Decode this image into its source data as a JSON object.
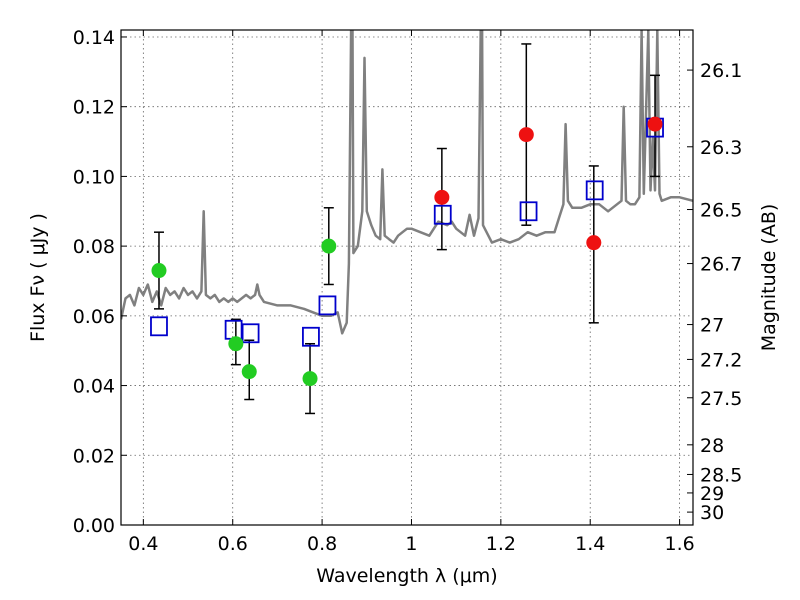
{
  "chart_data": {
    "type": "scatter",
    "xlabel": "Wavelength  λ (μm)",
    "ylabel": "Flux  Fν  ( μJy )",
    "y2label": "Magnitude (AB)",
    "xlim": [
      0.35,
      1.63
    ],
    "ylim": [
      0.0,
      0.142
    ],
    "grid": true,
    "x_ticks": [
      {
        "value": 0.4,
        "label": "0.4"
      },
      {
        "value": 0.6,
        "label": "0.6"
      },
      {
        "value": 0.8,
        "label": "0.8"
      },
      {
        "value": 1.0,
        "label": "1"
      },
      {
        "value": 1.2,
        "label": "1.2"
      },
      {
        "value": 1.4,
        "label": "1.4"
      },
      {
        "value": 1.6,
        "label": "1.6"
      }
    ],
    "y_ticks": [
      {
        "value": 0.0,
        "label": "0.00"
      },
      {
        "value": 0.02,
        "label": "0.02"
      },
      {
        "value": 0.04,
        "label": "0.04"
      },
      {
        "value": 0.06,
        "label": "0.06"
      },
      {
        "value": 0.08,
        "label": "0.08"
      },
      {
        "value": 0.1,
        "label": "0.10"
      },
      {
        "value": 0.12,
        "label": "0.12"
      },
      {
        "value": 0.14,
        "label": "0.14"
      }
    ],
    "y2_ticks": [
      {
        "label": "26.1",
        "flux": 0.1305
      },
      {
        "label": "26.3",
        "flux": 0.1085
      },
      {
        "label": "26.5",
        "flux": 0.0905
      },
      {
        "label": "26.7",
        "flux": 0.075
      },
      {
        "label": "27",
        "flux": 0.0575
      },
      {
        "label": "27.2",
        "flux": 0.0475
      },
      {
        "label": "27.5",
        "flux": 0.0365
      },
      {
        "label": "28",
        "flux": 0.023
      },
      {
        "label": "28.5",
        "flux": 0.0145
      },
      {
        "label": "29",
        "flux": 0.0092
      },
      {
        "label": "30",
        "flux": 0.0037
      }
    ],
    "series": [
      {
        "kind": "model-spectrum",
        "color": "#808080",
        "points": [
          [
            0.35,
            0.059
          ],
          [
            0.36,
            0.065
          ],
          [
            0.37,
            0.066
          ],
          [
            0.38,
            0.063
          ],
          [
            0.39,
            0.068
          ],
          [
            0.4,
            0.066
          ],
          [
            0.41,
            0.069
          ],
          [
            0.42,
            0.064
          ],
          [
            0.43,
            0.067
          ],
          [
            0.44,
            0.063
          ],
          [
            0.45,
            0.068
          ],
          [
            0.46,
            0.066
          ],
          [
            0.47,
            0.067
          ],
          [
            0.48,
            0.065
          ],
          [
            0.49,
            0.068
          ],
          [
            0.5,
            0.066
          ],
          [
            0.51,
            0.067
          ],
          [
            0.52,
            0.065
          ],
          [
            0.53,
            0.067
          ],
          [
            0.535,
            0.09
          ],
          [
            0.54,
            0.066
          ],
          [
            0.55,
            0.065
          ],
          [
            0.56,
            0.066
          ],
          [
            0.57,
            0.064
          ],
          [
            0.58,
            0.065
          ],
          [
            0.59,
            0.064
          ],
          [
            0.6,
            0.065
          ],
          [
            0.61,
            0.064
          ],
          [
            0.62,
            0.065
          ],
          [
            0.63,
            0.066
          ],
          [
            0.64,
            0.065
          ],
          [
            0.65,
            0.066
          ],
          [
            0.655,
            0.069
          ],
          [
            0.66,
            0.066
          ],
          [
            0.67,
            0.064
          ],
          [
            0.7,
            0.063
          ],
          [
            0.73,
            0.063
          ],
          [
            0.76,
            0.062
          ],
          [
            0.78,
            0.061
          ],
          [
            0.8,
            0.06
          ],
          [
            0.82,
            0.06
          ],
          [
            0.835,
            0.061
          ],
          [
            0.845,
            0.055
          ],
          [
            0.855,
            0.058
          ],
          [
            0.86,
            0.075
          ],
          [
            0.865,
            0.142
          ],
          [
            0.868,
            0.142
          ],
          [
            0.87,
            0.078
          ],
          [
            0.88,
            0.08
          ],
          [
            0.89,
            0.09
          ],
          [
            0.895,
            0.134
          ],
          [
            0.9,
            0.09
          ],
          [
            0.91,
            0.086
          ],
          [
            0.92,
            0.083
          ],
          [
            0.93,
            0.082
          ],
          [
            0.935,
            0.102
          ],
          [
            0.94,
            0.083
          ],
          [
            0.95,
            0.082
          ],
          [
            0.96,
            0.081
          ],
          [
            0.97,
            0.083
          ],
          [
            0.98,
            0.084
          ],
          [
            0.99,
            0.085
          ],
          [
            1.0,
            0.085
          ],
          [
            1.02,
            0.084
          ],
          [
            1.04,
            0.083
          ],
          [
            1.06,
            0.087
          ],
          [
            1.08,
            0.086
          ],
          [
            1.09,
            0.087
          ],
          [
            1.1,
            0.085
          ],
          [
            1.12,
            0.083
          ],
          [
            1.13,
            0.089
          ],
          [
            1.14,
            0.083
          ],
          [
            1.15,
            0.088
          ],
          [
            1.155,
            0.142
          ],
          [
            1.158,
            0.142
          ],
          [
            1.16,
            0.086
          ],
          [
            1.18,
            0.081
          ],
          [
            1.2,
            0.082
          ],
          [
            1.22,
            0.081
          ],
          [
            1.24,
            0.082
          ],
          [
            1.26,
            0.084
          ],
          [
            1.28,
            0.083
          ],
          [
            1.3,
            0.084
          ],
          [
            1.32,
            0.084
          ],
          [
            1.33,
            0.088
          ],
          [
            1.34,
            0.092
          ],
          [
            1.345,
            0.115
          ],
          [
            1.35,
            0.093
          ],
          [
            1.36,
            0.091
          ],
          [
            1.38,
            0.091
          ],
          [
            1.4,
            0.092
          ],
          [
            1.42,
            0.092
          ],
          [
            1.44,
            0.09
          ],
          [
            1.46,
            0.092
          ],
          [
            1.47,
            0.093
          ],
          [
            1.475,
            0.12
          ],
          [
            1.48,
            0.093
          ],
          [
            1.49,
            0.092
          ],
          [
            1.5,
            0.092
          ],
          [
            1.51,
            0.094
          ],
          [
            1.515,
            0.142
          ],
          [
            1.52,
            0.095
          ],
          [
            1.53,
            0.142
          ],
          [
            1.535,
            0.096
          ],
          [
            1.54,
            0.111
          ],
          [
            1.545,
            0.096
          ],
          [
            1.55,
            0.142
          ],
          [
            1.555,
            0.095
          ],
          [
            1.56,
            0.093
          ],
          [
            1.58,
            0.094
          ],
          [
            1.6,
            0.094
          ],
          [
            1.63,
            0.093
          ]
        ]
      },
      {
        "kind": "model-photometry",
        "marker": "open-square",
        "color": "#0000cc",
        "points": [
          [
            0.435,
            0.057
          ],
          [
            0.602,
            0.056
          ],
          [
            0.64,
            0.055
          ],
          [
            0.775,
            0.054
          ],
          [
            0.812,
            0.063
          ],
          [
            1.07,
            0.089
          ],
          [
            1.262,
            0.09
          ],
          [
            1.41,
            0.096
          ],
          [
            1.545,
            0.114
          ]
        ]
      },
      {
        "kind": "observed-optical",
        "marker": "filled-circle",
        "color": "#22cc22",
        "points": [
          {
            "x": 0.435,
            "y": 0.073,
            "lo": 0.062,
            "hi": 0.084
          },
          {
            "x": 0.607,
            "y": 0.052,
            "lo": 0.046,
            "hi": 0.059
          },
          {
            "x": 0.637,
            "y": 0.044,
            "lo": 0.036,
            "hi": 0.053
          },
          {
            "x": 0.773,
            "y": 0.042,
            "lo": 0.032,
            "hi": 0.052
          },
          {
            "x": 0.815,
            "y": 0.08,
            "lo": 0.069,
            "hi": 0.091
          }
        ]
      },
      {
        "kind": "observed-infrared",
        "marker": "filled-circle",
        "color": "#ee1111",
        "points": [
          {
            "x": 1.068,
            "y": 0.094,
            "lo": 0.079,
            "hi": 0.108
          },
          {
            "x": 1.257,
            "y": 0.112,
            "lo": 0.086,
            "hi": 0.138
          },
          {
            "x": 1.408,
            "y": 0.081,
            "lo": 0.058,
            "hi": 0.103
          },
          {
            "x": 1.545,
            "y": 0.115,
            "lo": 0.1,
            "hi": 0.129
          }
        ]
      }
    ]
  }
}
